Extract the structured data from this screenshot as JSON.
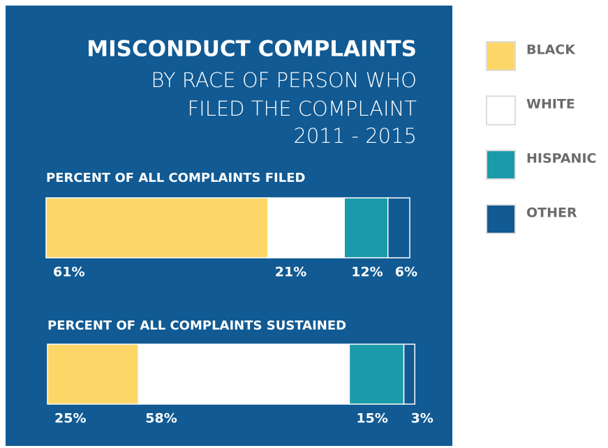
{
  "chart_data": {
    "type": "bar",
    "orientation": "horizontal",
    "stacked": true,
    "title": "MISCONDUCT COMPLAINTS",
    "subtitle": [
      "BY RACE OF PERSON WHO",
      "FILED THE COMPLAINT",
      "2011 - 2015"
    ],
    "categories": [
      "PERCENT OF ALL COMPLAINTS FILED",
      "PERCENT OF ALL COMPLAINTS SUSTAINED"
    ],
    "xlim": [
      0,
      100
    ],
    "series": [
      {
        "name": "BLACK",
        "color": "#fcd667",
        "values": [
          61,
          25
        ],
        "value_labels": [
          "61%",
          "25%"
        ]
      },
      {
        "name": "WHITE",
        "color": "#ffffff",
        "values": [
          21,
          58
        ],
        "value_labels": [
          "21%",
          "58%"
        ]
      },
      {
        "name": "HISPANIC",
        "color": "#1b9aaa",
        "values": [
          12,
          15
        ],
        "value_labels": [
          "12%",
          "15%"
        ]
      },
      {
        "name": "OTHER",
        "color": "#115a93",
        "values": [
          6,
          3
        ],
        "value_labels": [
          "6%",
          "3%"
        ]
      }
    ],
    "legend": "right"
  }
}
